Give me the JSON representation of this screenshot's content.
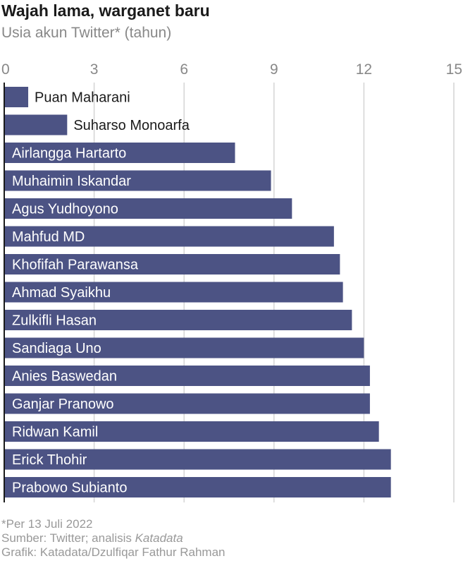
{
  "header": {
    "title": "Wajah lama, warganet baru",
    "subtitle": "Usia akun Twitter* (tahun)"
  },
  "colors": {
    "bar": "#4c5384",
    "axis": "#1a1a1a",
    "grid": "#d4d4d4",
    "tick_text": "#888888",
    "label_inside": "#ffffff",
    "label_outside": "#1a1a1a"
  },
  "chart_data": {
    "type": "bar",
    "orientation": "horizontal",
    "title": "Wajah lama, warganet baru",
    "subtitle": "Usia akun Twitter* (tahun)",
    "xlim": [
      0,
      15
    ],
    "x_ticks": [
      0,
      3,
      6,
      9,
      12,
      15
    ],
    "grid": true,
    "categories": [
      "Puan Maharani",
      "Suharso Monoarfa",
      "Airlangga Hartarto",
      "Muhaimin Iskandar",
      "Agus Yudhoyono",
      "Mahfud MD",
      "Khofifah Parawansa",
      "Ahmad Syaikhu",
      "Zulkifli Hasan",
      "Sandiaga Uno",
      "Anies Baswedan",
      "Ganjar Pranowo",
      "Ridwan Kamil",
      "Erick Thohir",
      "Prabowo Subianto"
    ],
    "values": [
      0.8,
      2.1,
      7.7,
      8.9,
      9.6,
      11.0,
      11.2,
      11.3,
      11.6,
      12.0,
      12.2,
      12.2,
      12.5,
      12.9,
      12.9
    ]
  },
  "footer": {
    "note": "*Per 13 Juli 2022",
    "source_prefix": "Sumber: Twitter; analisis ",
    "source_name": "Katadata",
    "credit": "Grafik: Katadata/Dzulfiqar Fathur Rahman"
  }
}
